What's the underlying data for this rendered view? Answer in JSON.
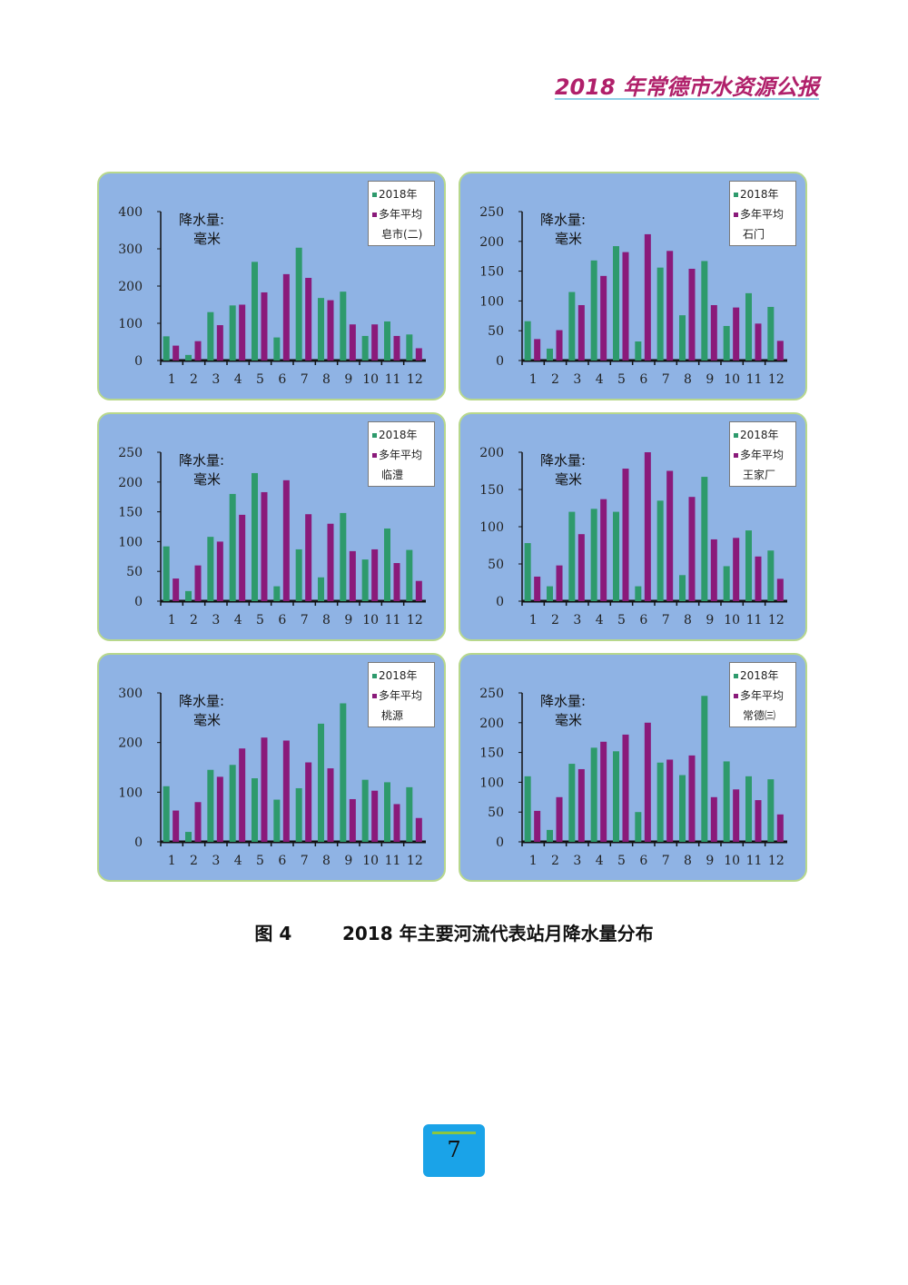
{
  "header": {
    "doc_title": "2018 年常德市水资源公报"
  },
  "figure": {
    "caption": "图 4        2018 年主要河流代表站月降水量分布"
  },
  "page": {
    "number": "7"
  },
  "colors": {
    "bar_2018": "#2e9a6c",
    "bar_avg": "#8a1a7a",
    "panel_bg": "#8fb3e4",
    "panel_border": "#b8d88c"
  },
  "chart_data": [
    {
      "type": "bar",
      "station": "皂市(二)",
      "ylabel_line1": "降水量:",
      "ylabel_line2": "毫米",
      "legend": [
        "2018年",
        "多年平均"
      ],
      "categories": [
        "1",
        "2",
        "3",
        "4",
        "5",
        "6",
        "7",
        "8",
        "9",
        "10",
        "11",
        "12"
      ],
      "ylim": [
        0,
        400
      ],
      "yticks": [
        0,
        100,
        200,
        300,
        400
      ],
      "series": [
        {
          "name": "2018年",
          "values": [
            65,
            15,
            130,
            148,
            265,
            62,
            303,
            168,
            185,
            66,
            105,
            70
          ]
        },
        {
          "name": "多年平均",
          "values": [
            40,
            52,
            95,
            150,
            183,
            232,
            222,
            162,
            97,
            97,
            66,
            33
          ]
        }
      ]
    },
    {
      "type": "bar",
      "station": "石门",
      "ylabel_line1": "降水量:",
      "ylabel_line2": "毫米",
      "legend": [
        "2018年",
        "多年平均"
      ],
      "categories": [
        "1",
        "2",
        "3",
        "4",
        "5",
        "6",
        "7",
        "8",
        "9",
        "10",
        "11",
        "12"
      ],
      "ylim": [
        0,
        250
      ],
      "yticks": [
        0,
        50,
        100,
        150,
        200,
        250
      ],
      "series": [
        {
          "name": "2018年",
          "values": [
            66,
            20,
            115,
            168,
            192,
            32,
            156,
            76,
            167,
            58,
            113,
            90
          ]
        },
        {
          "name": "多年平均",
          "values": [
            36,
            51,
            93,
            142,
            182,
            212,
            184,
            154,
            93,
            89,
            62,
            33
          ]
        }
      ]
    },
    {
      "type": "bar",
      "station": "临澧",
      "ylabel_line1": "降水量:",
      "ylabel_line2": "毫米",
      "legend": [
        "2018年",
        "多年平均"
      ],
      "categories": [
        "1",
        "2",
        "3",
        "4",
        "5",
        "6",
        "7",
        "8",
        "9",
        "10",
        "11",
        "12"
      ],
      "ylim": [
        0,
        250
      ],
      "yticks": [
        0,
        50,
        100,
        150,
        200,
        250
      ],
      "series": [
        {
          "name": "2018年",
          "values": [
            92,
            17,
            108,
            180,
            215,
            25,
            87,
            40,
            148,
            70,
            122,
            86
          ]
        },
        {
          "name": "多年平均",
          "values": [
            38,
            60,
            100,
            145,
            183,
            203,
            146,
            130,
            84,
            87,
            64,
            34
          ]
        }
      ]
    },
    {
      "type": "bar",
      "station": "王家厂",
      "ylabel_line1": "降水量:",
      "ylabel_line2": "毫米",
      "legend": [
        "2018年",
        "多年平均"
      ],
      "categories": [
        "1",
        "2",
        "3",
        "4",
        "5",
        "6",
        "7",
        "8",
        "9",
        "10",
        "11",
        "12"
      ],
      "ylim": [
        0,
        200
      ],
      "yticks": [
        0,
        50,
        100,
        150,
        200
      ],
      "series": [
        {
          "name": "2018年",
          "values": [
            78,
            20,
            120,
            124,
            120,
            20,
            135,
            35,
            167,
            47,
            95,
            68
          ]
        },
        {
          "name": "多年平均",
          "values": [
            33,
            48,
            90,
            137,
            178,
            200,
            175,
            140,
            83,
            85,
            60,
            30
          ]
        }
      ]
    },
    {
      "type": "bar",
      "station": "桃源",
      "ylabel_line1": "降水量:",
      "ylabel_line2": "毫米",
      "legend": [
        "2018年",
        "多年平均"
      ],
      "categories": [
        "1",
        "2",
        "3",
        "4",
        "5",
        "6",
        "7",
        "8",
        "9",
        "10",
        "11",
        "12"
      ],
      "ylim": [
        0,
        300
      ],
      "yticks": [
        0,
        100,
        200,
        300
      ],
      "series": [
        {
          "name": "2018年",
          "values": [
            112,
            20,
            145,
            155,
            128,
            85,
            108,
            238,
            279,
            125,
            120,
            110
          ]
        },
        {
          "name": "多年平均",
          "values": [
            63,
            80,
            131,
            188,
            210,
            204,
            160,
            148,
            86,
            103,
            76,
            48
          ]
        }
      ]
    },
    {
      "type": "bar",
      "station": "常德㈢",
      "ylabel_line1": "降水量:",
      "ylabel_line2": "毫米",
      "legend": [
        "2018年",
        "多年平均"
      ],
      "categories": [
        "1",
        "2",
        "3",
        "4",
        "5",
        "6",
        "7",
        "8",
        "9",
        "10",
        "11",
        "12"
      ],
      "ylim": [
        0,
        250
      ],
      "yticks": [
        0,
        50,
        100,
        150,
        200,
        250
      ],
      "series": [
        {
          "name": "2018年",
          "values": [
            110,
            20,
            131,
            158,
            152,
            50,
            133,
            112,
            245,
            135,
            110,
            105
          ]
        },
        {
          "name": "多年平均",
          "values": [
            52,
            75,
            122,
            168,
            180,
            200,
            138,
            145,
            75,
            88,
            70,
            46
          ]
        }
      ]
    }
  ]
}
